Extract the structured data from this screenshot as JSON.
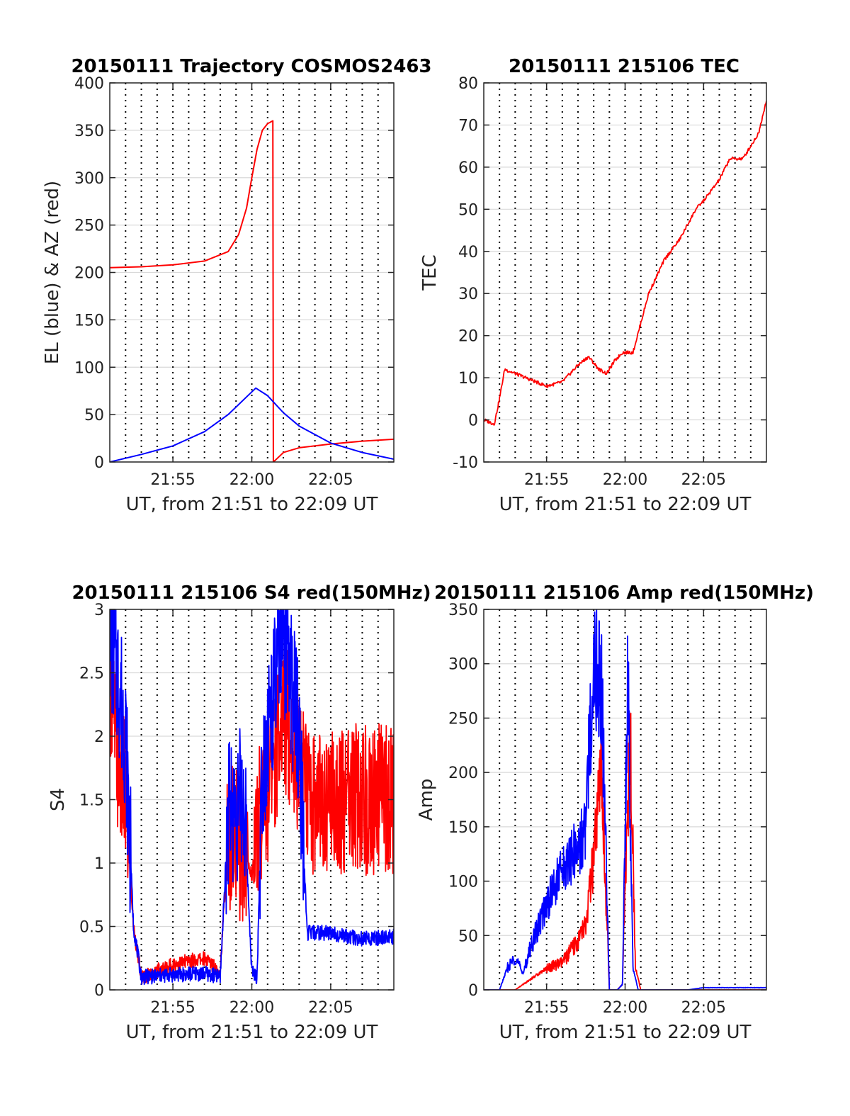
{
  "colors": {
    "red": "#ff0000",
    "blue": "#0000ff",
    "grid": "#d9d9d9",
    "axis": "#262626"
  },
  "chart_data": [
    {
      "id": "trajectory",
      "type": "line",
      "title": "20150111 Trajectory COSMOS2463",
      "xlabel": "UT, from 21:51 to 22:09 UT",
      "ylabel": "EL (blue) & AZ (red)",
      "xlim": [
        "21:51",
        "22:09"
      ],
      "ylim": [
        0,
        400
      ],
      "yticks": [
        0,
        50,
        100,
        150,
        200,
        250,
        300,
        350,
        400
      ],
      "xticks": [
        "21:55",
        "22:00",
        "22:05"
      ],
      "grid": true,
      "series": [
        {
          "color": "red",
          "x": [
            "21:51:00",
            "21:53:00",
            "21:55:00",
            "21:57:00",
            "21:58:30",
            "21:59:10",
            "21:59:40",
            "22:00:00",
            "22:00:20",
            "22:00:40",
            "22:01:00",
            "22:01:20",
            "22:01:22",
            "22:01:30",
            "22:02:00",
            "22:03:00",
            "22:05:00",
            "22:07:00",
            "22:09:00"
          ],
          "y": [
            205,
            206,
            208,
            212,
            222,
            240,
            268,
            300,
            330,
            350,
            357,
            360,
            0,
            2,
            10,
            15,
            19,
            22,
            24
          ]
        },
        {
          "color": "blue",
          "x": [
            "21:51:00",
            "21:53:00",
            "21:55:00",
            "21:57:00",
            "21:58:30",
            "21:59:30",
            "22:00:15",
            "22:01:00",
            "22:02:00",
            "22:03:00",
            "22:05:00",
            "22:07:00",
            "22:09:00"
          ],
          "y": [
            0,
            8,
            17,
            32,
            50,
            66,
            78,
            70,
            52,
            38,
            20,
            10,
            3
          ]
        }
      ]
    },
    {
      "id": "tec",
      "type": "line",
      "title": "20150111 215106 TEC",
      "xlabel": "UT, from 21:51 to 22:09 UT",
      "ylabel": "TEC",
      "xlim": [
        "21:51",
        "22:09"
      ],
      "ylim": [
        -10,
        80
      ],
      "yticks": [
        -10,
        0,
        10,
        20,
        30,
        40,
        50,
        60,
        70,
        80
      ],
      "xticks": [
        "21:55",
        "22:00",
        "22:05"
      ],
      "grid": true,
      "series": [
        {
          "color": "red",
          "x": [
            "21:51:00",
            "21:51:40",
            "21:52:00",
            "21:52:20",
            "21:53:00",
            "21:55:00",
            "21:56:00",
            "21:57:00",
            "21:57:40",
            "21:58:20",
            "21:58:50",
            "21:59:20",
            "21:59:50",
            "22:00:30",
            "22:01:30",
            "22:02:30",
            "22:03:30",
            "22:04:30",
            "22:05:00",
            "22:06:00",
            "22:06:40",
            "22:07:30",
            "22:08:30",
            "22:09:00"
          ],
          "y": [
            0,
            -1,
            5,
            12,
            11,
            8,
            9,
            13,
            15,
            12,
            11,
            14,
            16,
            16,
            30,
            38,
            43,
            50,
            52,
            57,
            62,
            62,
            68,
            76
          ]
        }
      ]
    },
    {
      "id": "s4",
      "type": "line",
      "title": "20150111 215106 S4 red(150MHz)",
      "xlabel": "UT, from 21:51 to 22:09 UT",
      "ylabel": "S4",
      "xlim": [
        "21:51",
        "22:09"
      ],
      "ylim": [
        0,
        3
      ],
      "yticks": [
        0,
        0.5,
        1,
        1.5,
        2,
        2.5,
        3
      ],
      "ytick_labels": [
        "0",
        "0.5",
        "1",
        "1.5",
        "2",
        "2.5",
        "3"
      ],
      "xticks": [
        "21:55",
        "22:00",
        "22:05"
      ],
      "grid": true,
      "series": [
        {
          "color": "red",
          "x": [
            "21:51:00",
            "21:51:30",
            "21:52:00",
            "21:52:30",
            "21:53:00",
            "21:55:00",
            "21:57:00",
            "21:58:00",
            "21:58:30",
            "21:59:30",
            "22:00:00",
            "22:00:30",
            "22:01:00",
            "22:02:00",
            "22:03:00",
            "22:03:30",
            "22:05:00",
            "22:07:00",
            "22:09:00"
          ],
          "y": [
            2.5,
            1.8,
            1.5,
            0.5,
            0.1,
            0.2,
            0.25,
            0.15,
            1.2,
            1.1,
            0.9,
            1.4,
            1.6,
            2.2,
            1.8,
            1.5,
            1.5,
            1.5,
            1.5
          ]
        },
        {
          "color": "blue",
          "x": [
            "21:51:00",
            "21:51:30",
            "21:52:00",
            "21:52:30",
            "21:53:00",
            "21:55:00",
            "21:57:00",
            "21:58:00",
            "21:58:30",
            "21:59:30",
            "22:00:00",
            "22:00:20",
            "22:00:40",
            "22:01:00",
            "22:02:00",
            "22:03:00",
            "22:03:30",
            "22:05:00",
            "22:07:00",
            "22:09:00"
          ],
          "y": [
            2.8,
            2.5,
            2.0,
            0.5,
            0.1,
            0.12,
            0.13,
            0.1,
            1.4,
            1.5,
            0.15,
            0.1,
            1.8,
            2.0,
            2.8,
            2.0,
            0.45,
            0.45,
            0.4,
            0.42
          ]
        }
      ]
    },
    {
      "id": "amp",
      "type": "line",
      "title": "20150111 215106 Amp red(150MHz)",
      "xlabel": "UT, from 21:51 to 22:09 UT",
      "ylabel": "Amp",
      "xlim": [
        "21:51",
        "22:09"
      ],
      "ylim": [
        0,
        350
      ],
      "yticks": [
        0,
        50,
        100,
        150,
        200,
        250,
        300,
        350
      ],
      "xticks": [
        "21:55",
        "22:00",
        "22:05"
      ],
      "grid": true,
      "series": [
        {
          "color": "red",
          "x": [
            "21:51:00",
            "21:53:00",
            "21:54:00",
            "21:55:00",
            "21:56:00",
            "21:56:30",
            "21:57:00",
            "21:57:30",
            "21:58:00",
            "21:58:30",
            "21:59:00",
            "21:59:30",
            "21:59:50",
            "22:00:00",
            "22:00:20",
            "22:00:40",
            "22:01:00",
            "22:03:00",
            "22:09:00"
          ],
          "y": [
            0,
            0,
            10,
            20,
            25,
            35,
            45,
            60,
            120,
            200,
            0,
            0,
            5,
            100,
            230,
            20,
            0,
            0,
            0
          ]
        },
        {
          "color": "blue",
          "x": [
            "21:51:00",
            "21:52:00",
            "21:52:30",
            "21:53:00",
            "21:53:30",
            "21:54:00",
            "21:55:00",
            "21:56:00",
            "21:57:00",
            "21:57:30",
            "21:58:00",
            "21:58:30",
            "21:59:00",
            "21:59:30",
            "21:59:50",
            "22:00:10",
            "22:00:30",
            "22:00:50",
            "22:01:00",
            "22:04:00",
            "22:05:00",
            "22:09:00"
          ],
          "y": [
            0,
            0,
            20,
            30,
            15,
            40,
            80,
            110,
            130,
            150,
            310,
            280,
            0,
            0,
            5,
            290,
            20,
            0,
            0,
            0,
            2,
            2
          ]
        }
      ]
    }
  ]
}
